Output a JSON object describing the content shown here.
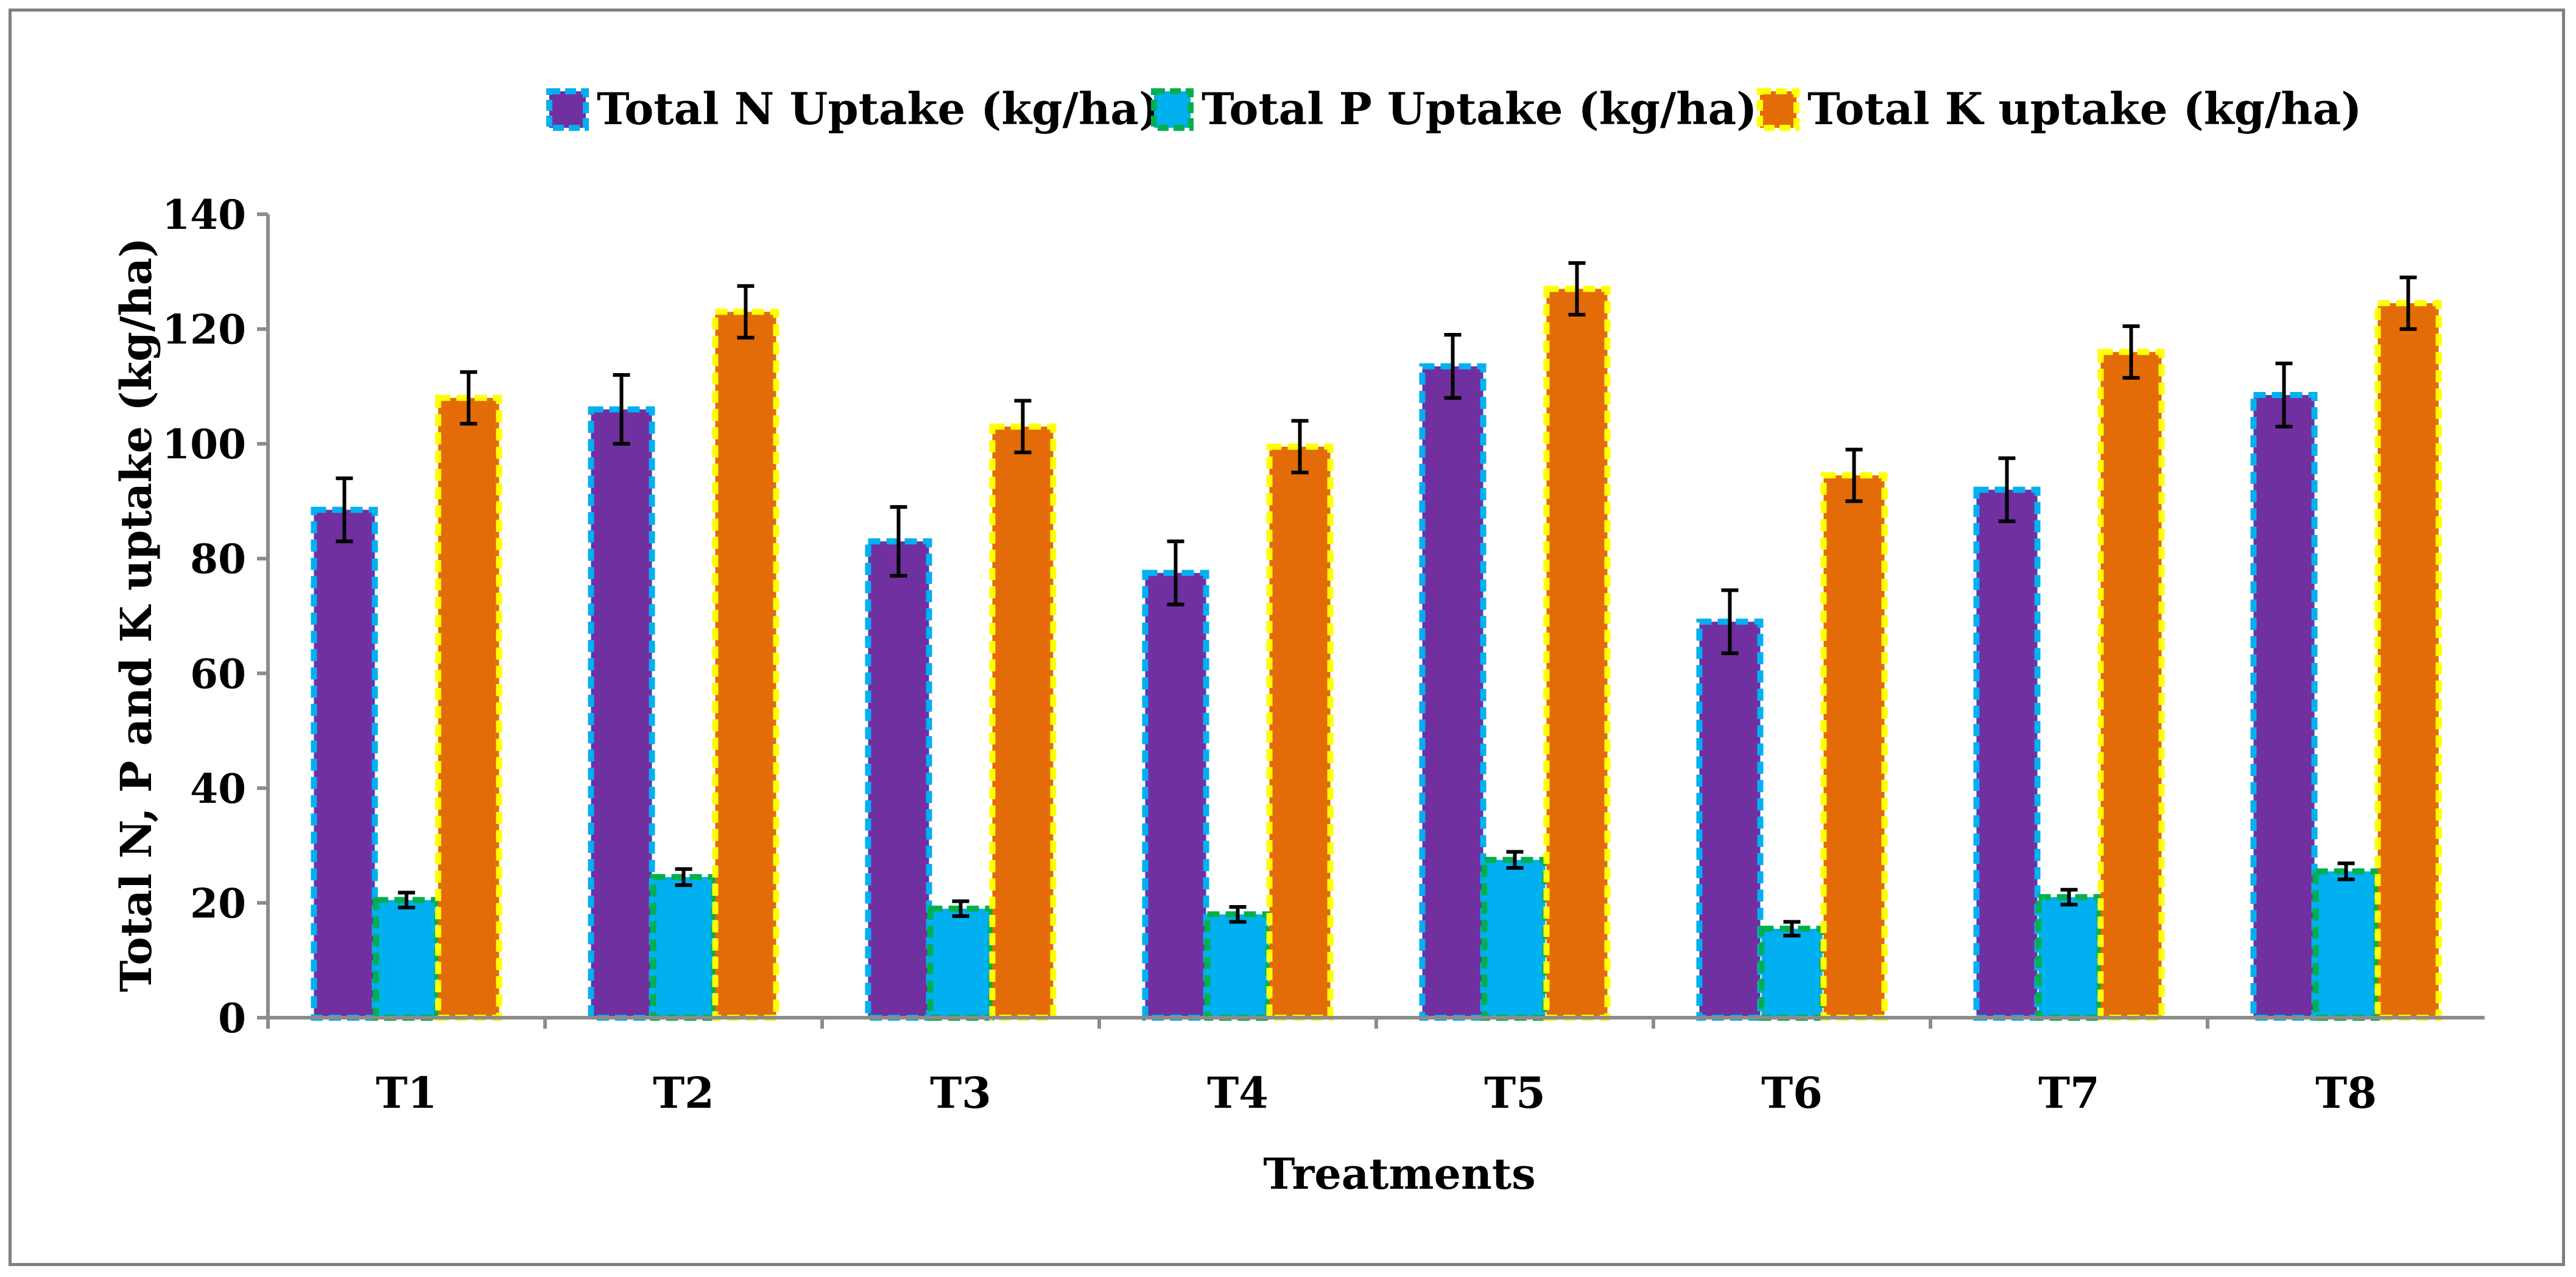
{
  "chart_data": {
    "type": "bar",
    "title": "",
    "xlabel": "Treatments",
    "ylabel": "Total N, P and K uptake (kg/ha)",
    "ylim": [
      0,
      140
    ],
    "yticks": [
      0,
      20,
      40,
      60,
      80,
      100,
      120,
      140
    ],
    "grid": false,
    "legend_position": "top-center",
    "categories": [
      "T1",
      "T2",
      "T3",
      "T4",
      "T5",
      "T6",
      "T7",
      "T8"
    ],
    "series": [
      {
        "name": "Total N Uptake (kg/ha)",
        "fill": "#7030a0",
        "border": "#00b0f0",
        "values": [
          88.5,
          106,
          83,
          77.5,
          113.5,
          69,
          92,
          108.5
        ],
        "errors": [
          5.5,
          6,
          6,
          5.5,
          5.5,
          5.5,
          5.5,
          5.5
        ]
      },
      {
        "name": "Total P Uptake (kg/ha)",
        "fill": "#00b0f0",
        "border": "#00b050",
        "values": [
          20.5,
          24.5,
          19,
          18,
          27.5,
          15.5,
          21,
          25.5
        ],
        "errors": [
          1.3,
          1.4,
          1.3,
          1.3,
          1.4,
          1.2,
          1.3,
          1.4
        ]
      },
      {
        "name": "Total K uptake (kg/ha)",
        "fill": "#e36c09",
        "border": "#ffff00",
        "values": [
          108,
          123,
          103,
          99.5,
          127,
          94.5,
          116,
          124.5
        ],
        "errors": [
          4.5,
          4.5,
          4.5,
          4.5,
          4.5,
          4.5,
          4.5,
          4.5
        ]
      }
    ]
  }
}
